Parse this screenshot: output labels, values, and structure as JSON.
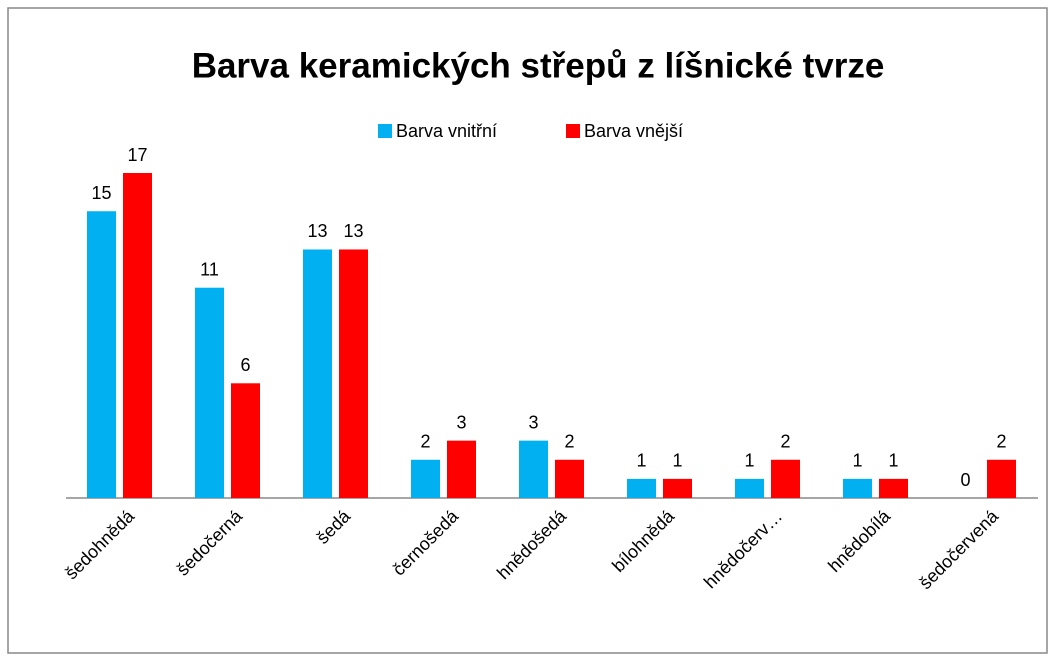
{
  "chart_data": {
    "type": "bar",
    "title": "Barva keramických střepů z líšnické tvrze",
    "categories": [
      "šedohnědá",
      "šedočerná",
      "šedá",
      "černošedá",
      "hnědošedá",
      "bílohnědá",
      "hnědočerv…",
      "hnědobílá",
      "šedočervená"
    ],
    "series": [
      {
        "name": "Barva vnitřní",
        "color": "#00b0f0",
        "values": [
          15,
          11,
          13,
          2,
          3,
          1,
          1,
          1,
          0
        ]
      },
      {
        "name": "Barva vnější",
        "color": "#ff0000",
        "values": [
          17,
          6,
          13,
          3,
          2,
          1,
          2,
          1,
          2
        ]
      }
    ],
    "legend": "top"
  }
}
